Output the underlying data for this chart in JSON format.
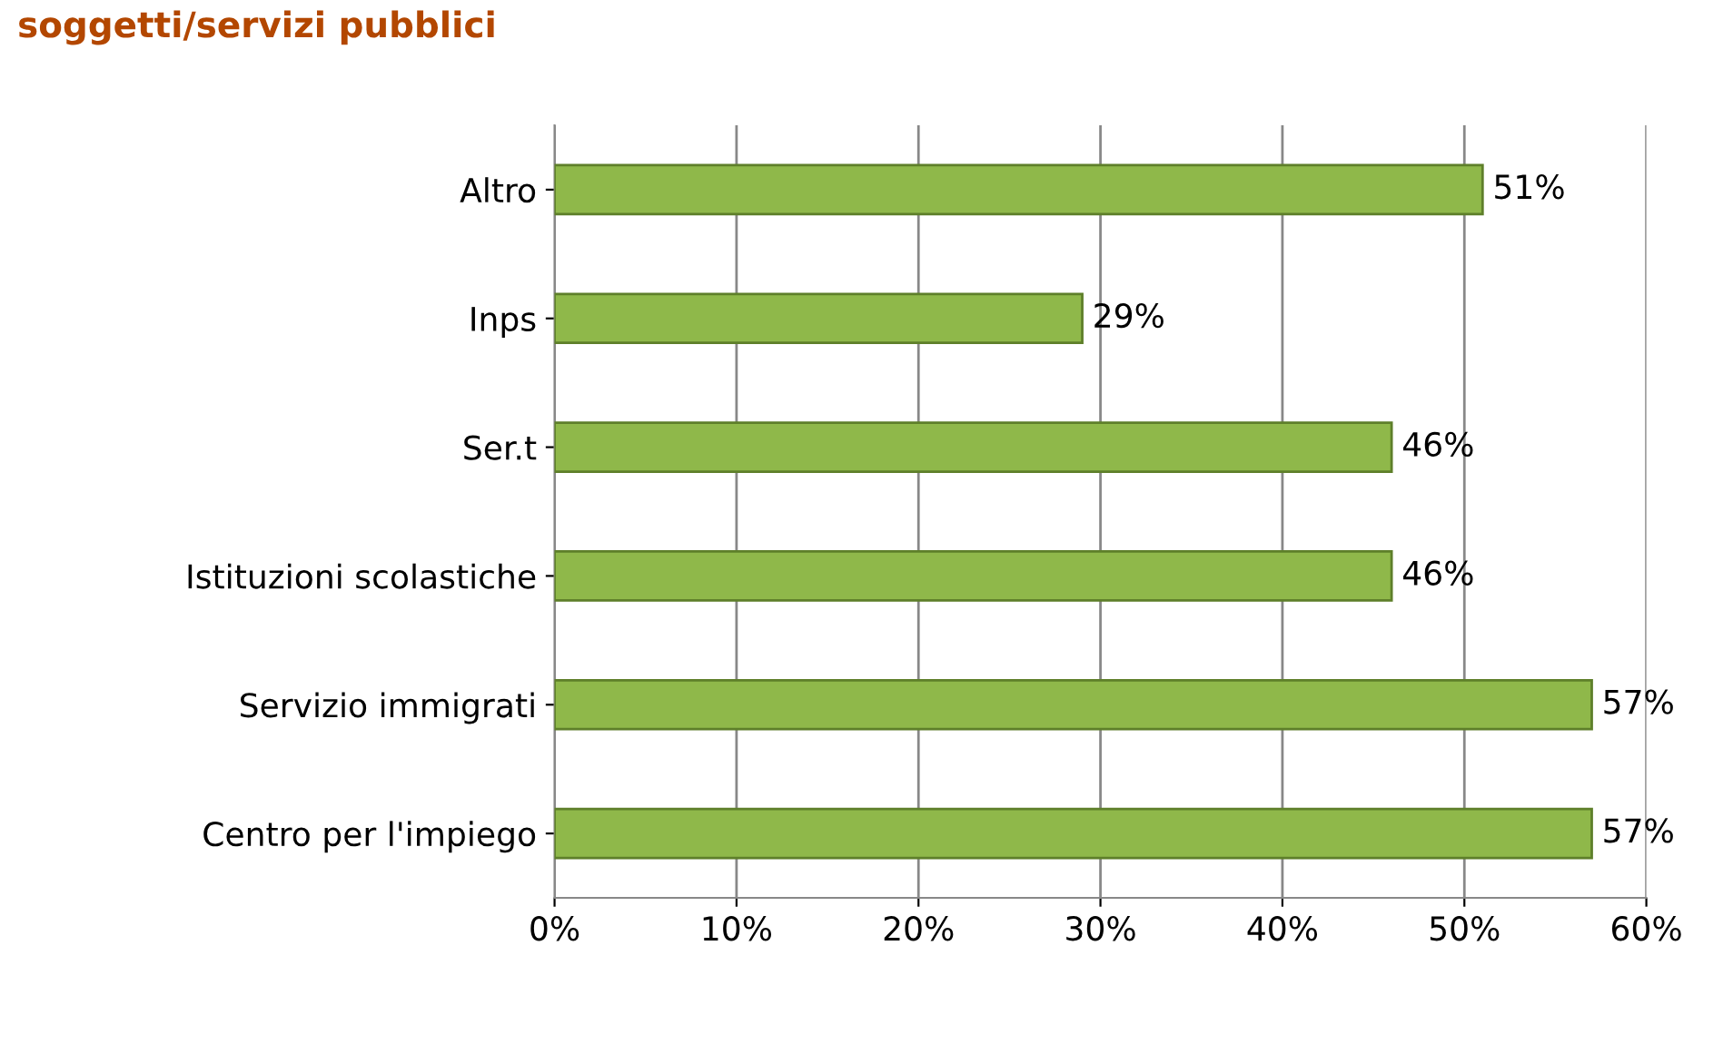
{
  "chart_data": {
    "type": "bar",
    "orientation": "horizontal",
    "title": "soggetti/servizi pubblici",
    "categories": [
      "Altro",
      "Inps",
      "Ser.t",
      "Istituzioni scolastiche",
      "Servizio immigrati",
      "Centro per l'impiego"
    ],
    "values": [
      51,
      29,
      46,
      46,
      57,
      57
    ],
    "value_labels": [
      "51%",
      "29%",
      "46%",
      "46%",
      "57%",
      "57%"
    ],
    "color": "#8fb84a",
    "xlim": [
      0,
      60
    ],
    "xticks": [
      {
        "value": 0,
        "label": "0%"
      },
      {
        "value": 10,
        "label": "10%"
      },
      {
        "value": 20,
        "label": "20%"
      },
      {
        "value": 30,
        "label": "30%"
      },
      {
        "value": 40,
        "label": "40%"
      },
      {
        "value": 50,
        "label": "50%"
      },
      {
        "value": 60,
        "label": "60%"
      }
    ],
    "grid": "x"
  }
}
